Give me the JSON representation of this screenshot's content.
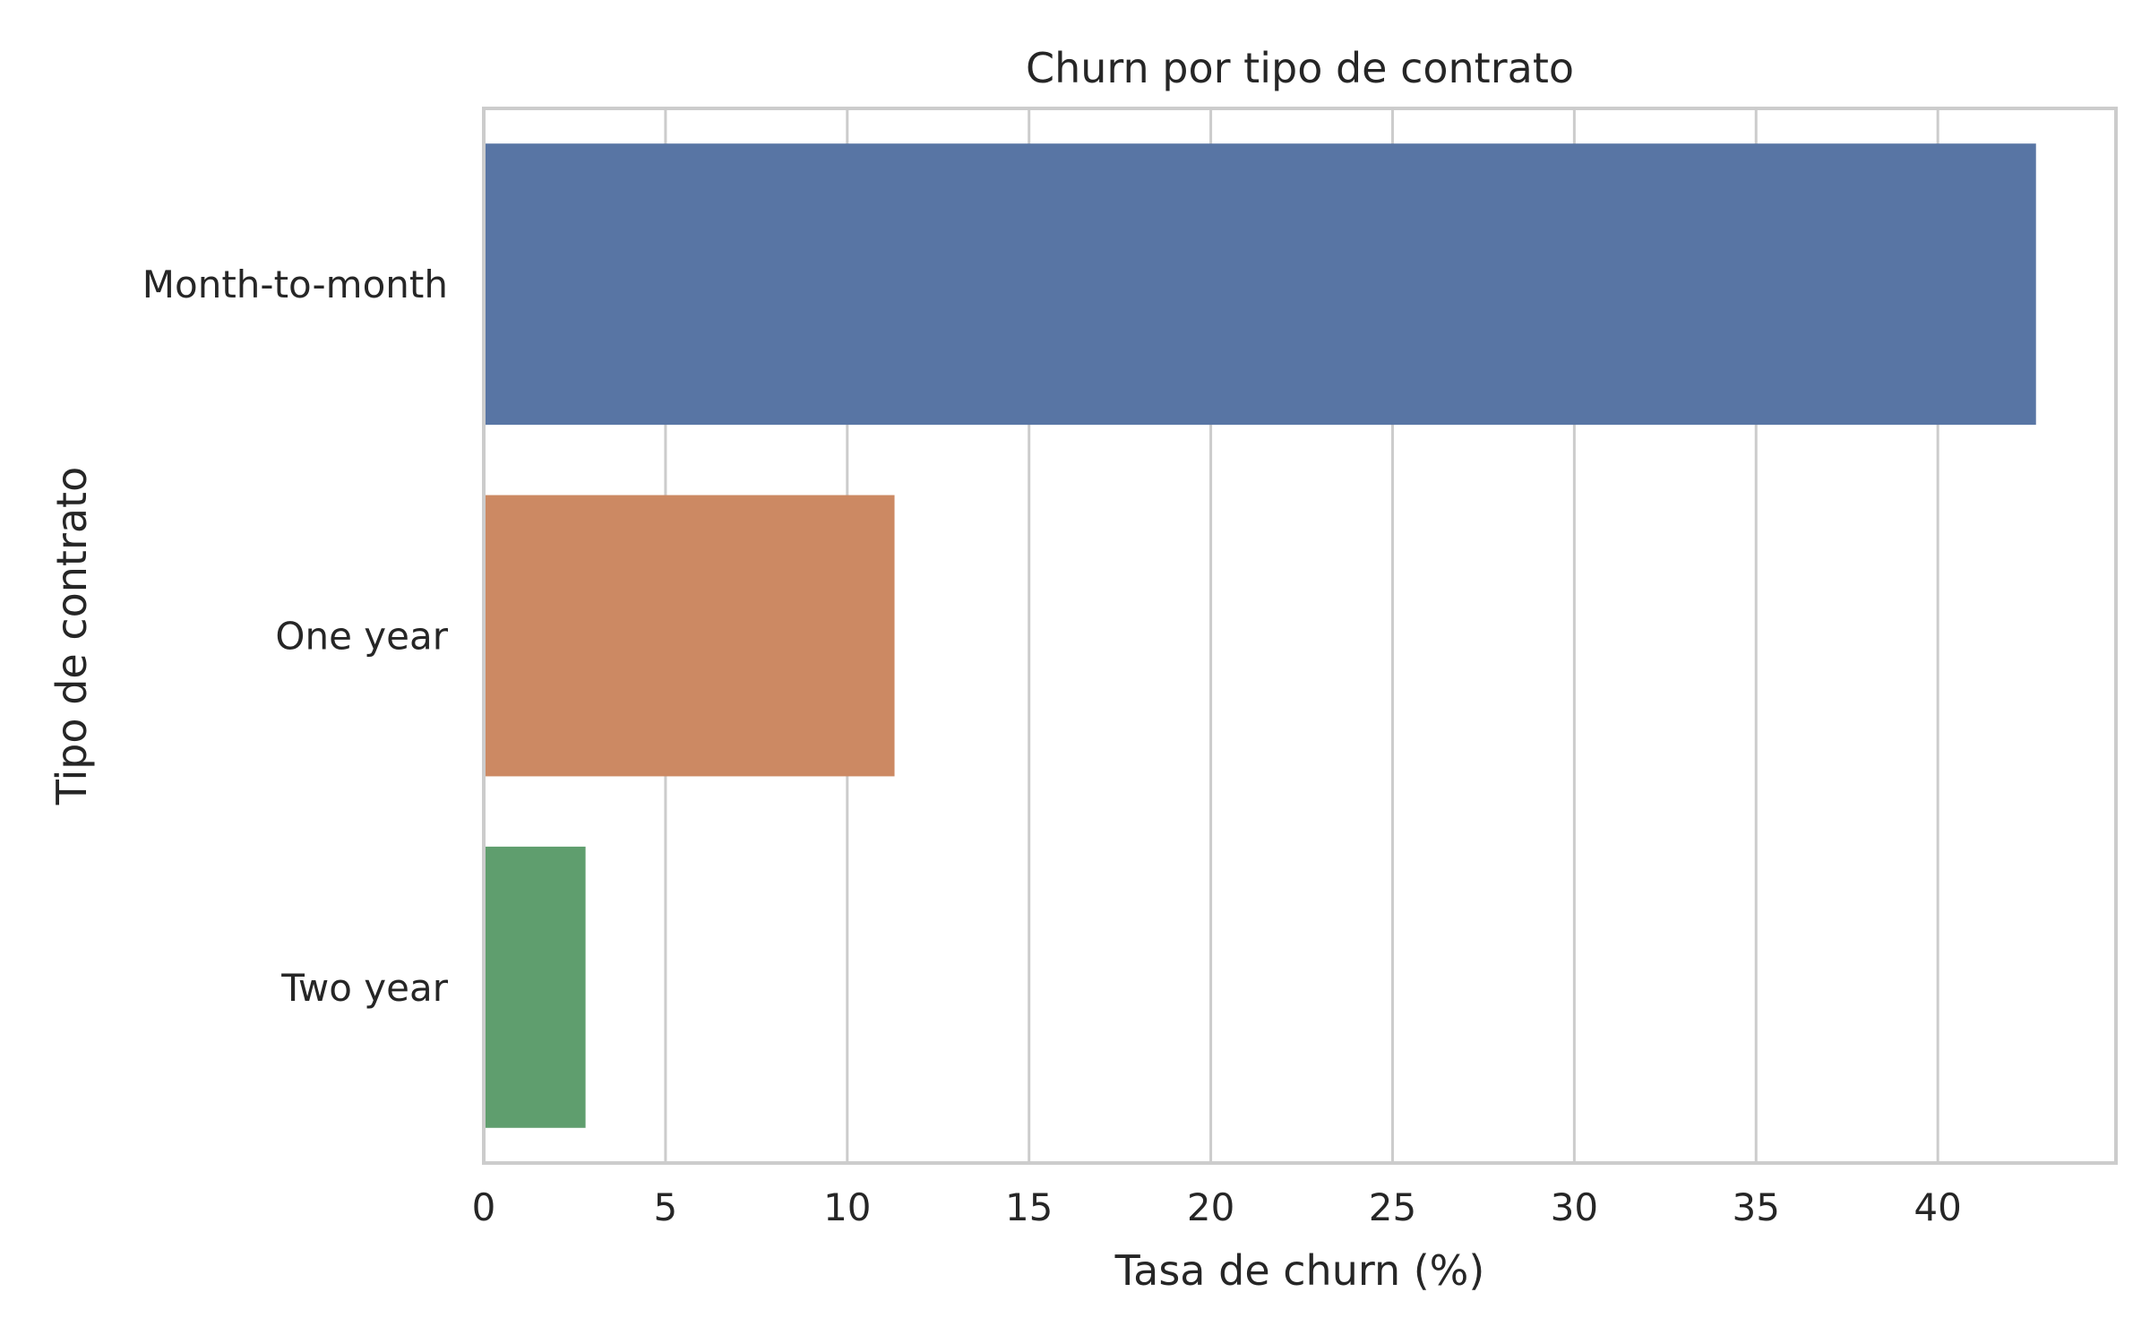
{
  "chart_data": {
    "type": "bar",
    "orientation": "horizontal",
    "title": "Churn por tipo de contrato",
    "xlabel": "Tasa de churn (%)",
    "ylabel": "Tipo de contrato",
    "categories": [
      "Month-to-month",
      "One year",
      "Two year"
    ],
    "values": [
      42.7,
      11.3,
      2.8
    ],
    "colors": [
      "#5875a4",
      "#cc8963",
      "#5f9e6e"
    ],
    "xlim": [
      0,
      44.9
    ],
    "xticks": [
      0,
      5,
      10,
      15,
      20,
      25,
      30,
      35,
      40
    ],
    "grid": true,
    "legend": "none"
  }
}
